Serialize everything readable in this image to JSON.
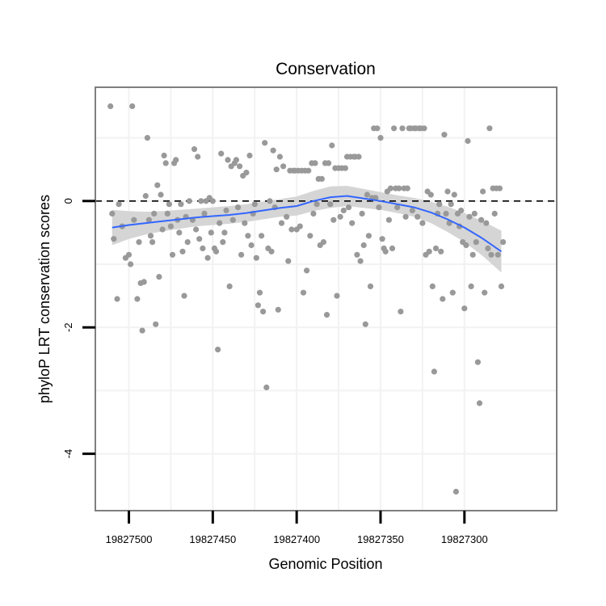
{
  "chart_data": {
    "type": "scatter",
    "title": "Conservation",
    "xlabel": "Genomic Position",
    "ylabel": "phyloP LRT conservation scores",
    "x_reversed": true,
    "xlim": [
      19827520,
      19827245
    ],
    "ylim": [
      -4.9,
      1.8
    ],
    "x_ticks": [
      19827500,
      19827450,
      19827400,
      19827350,
      19827300
    ],
    "x_tick_labels": [
      "19827500",
      "19827450",
      "19827400",
      "19827350",
      "19827300"
    ],
    "y_ticks": [
      0,
      -2,
      -4
    ],
    "y_tick_labels": [
      "0",
      "-2",
      "-4"
    ],
    "reference_line": {
      "y": 0,
      "style": "dashed"
    },
    "colors": {
      "points": "#999999",
      "smooth_line": "#3366ff",
      "ribbon": "#d5d5d5",
      "frame": "#7f7f7f",
      "grid": "#f2f2f2"
    },
    "points": [
      {
        "x": 19827511,
        "y": 1.5
      },
      {
        "x": 19827498,
        "y": 1.5
      },
      {
        "x": 19827510,
        "y": -0.2
      },
      {
        "x": 19827506,
        "y": -0.05
      },
      {
        "x": 19827509,
        "y": -0.6
      },
      {
        "x": 19827507,
        "y": -1.55
      },
      {
        "x": 19827504,
        "y": -0.4
      },
      {
        "x": 19827502,
        "y": -0.9
      },
      {
        "x": 19827500,
        "y": -0.85
      },
      {
        "x": 19827499,
        "y": -1.0
      },
      {
        "x": 19827497,
        "y": -0.3
      },
      {
        "x": 19827495,
        "y": -1.55
      },
      {
        "x": 19827494,
        "y": -0.65
      },
      {
        "x": 19827493,
        "y": -1.3
      },
      {
        "x": 19827492,
        "y": -2.05
      },
      {
        "x": 19827491,
        "y": -1.28
      },
      {
        "x": 19827490,
        "y": 0.08
      },
      {
        "x": 19827489,
        "y": 1.0
      },
      {
        "x": 19827488,
        "y": -0.3
      },
      {
        "x": 19827487,
        "y": -0.55
      },
      {
        "x": 19827486,
        "y": -0.65
      },
      {
        "x": 19827485,
        "y": -0.2
      },
      {
        "x": 19827484,
        "y": -1.95
      },
      {
        "x": 19827483,
        "y": 0.25
      },
      {
        "x": 19827482,
        "y": -1.2
      },
      {
        "x": 19827481,
        "y": 0.1
      },
      {
        "x": 19827480,
        "y": -0.45
      },
      {
        "x": 19827479,
        "y": 0.72
      },
      {
        "x": 19827478,
        "y": 0.6
      },
      {
        "x": 19827477,
        "y": -0.2
      },
      {
        "x": 19827476,
        "y": -0.05
      },
      {
        "x": 19827475,
        "y": -0.4
      },
      {
        "x": 19827474,
        "y": -0.85
      },
      {
        "x": 19827473,
        "y": 0.6
      },
      {
        "x": 19827472,
        "y": 0.65
      },
      {
        "x": 19827471,
        "y": -0.3
      },
      {
        "x": 19827470,
        "y": -0.5
      },
      {
        "x": 19827469,
        "y": -0.05
      },
      {
        "x": 19827468,
        "y": -0.8
      },
      {
        "x": 19827467,
        "y": -1.5
      },
      {
        "x": 19827466,
        "y": -0.25
      },
      {
        "x": 19827465,
        "y": -0.65
      },
      {
        "x": 19827464,
        "y": 0.0
      },
      {
        "x": 19827462,
        "y": -0.3
      },
      {
        "x": 19827461,
        "y": 0.82
      },
      {
        "x": 19827460,
        "y": -0.45
      },
      {
        "x": 19827459,
        "y": 0.7
      },
      {
        "x": 19827458,
        "y": -0.6
      },
      {
        "x": 19827457,
        "y": 0.0
      },
      {
        "x": 19827456,
        "y": -0.75
      },
      {
        "x": 19827455,
        "y": -0.2
      },
      {
        "x": 19827454,
        "y": 0.0
      },
      {
        "x": 19827453,
        "y": -0.9
      },
      {
        "x": 19827452,
        "y": 0.05
      },
      {
        "x": 19827451,
        "y": -0.5
      },
      {
        "x": 19827450,
        "y": 0.0
      },
      {
        "x": 19827449,
        "y": -0.75
      },
      {
        "x": 19827448,
        "y": -0.8
      },
      {
        "x": 19827447,
        "y": -2.35
      },
      {
        "x": 19827446,
        "y": -0.35
      },
      {
        "x": 19827445,
        "y": 0.75
      },
      {
        "x": 19827444,
        "y": -0.65
      },
      {
        "x": 19827443,
        "y": -0.5
      },
      {
        "x": 19827442,
        "y": -0.15
      },
      {
        "x": 19827441,
        "y": 0.65
      },
      {
        "x": 19827440,
        "y": -1.35
      },
      {
        "x": 19827439,
        "y": 0.55
      },
      {
        "x": 19827438,
        "y": -0.3
      },
      {
        "x": 19827437,
        "y": 0.6
      },
      {
        "x": 19827436,
        "y": 0.65
      },
      {
        "x": 19827435,
        "y": -0.1
      },
      {
        "x": 19827434,
        "y": 0.55
      },
      {
        "x": 19827433,
        "y": -0.85
      },
      {
        "x": 19827432,
        "y": 0.4
      },
      {
        "x": 19827431,
        "y": -0.35
      },
      {
        "x": 19827430,
        "y": 0.45
      },
      {
        "x": 19827429,
        "y": -0.55
      },
      {
        "x": 19827428,
        "y": 0.72
      },
      {
        "x": 19827427,
        "y": -0.7
      },
      {
        "x": 19827426,
        "y": -0.2
      },
      {
        "x": 19827425,
        "y": -0.05
      },
      {
        "x": 19827424,
        "y": -0.9
      },
      {
        "x": 19827423,
        "y": -1.65
      },
      {
        "x": 19827422,
        "y": -1.45
      },
      {
        "x": 19827421,
        "y": -0.55
      },
      {
        "x": 19827420,
        "y": -1.75
      },
      {
        "x": 19827419,
        "y": 0.92
      },
      {
        "x": 19827418,
        "y": -2.95
      },
      {
        "x": 19827417,
        "y": -0.75
      },
      {
        "x": 19827416,
        "y": 0.0
      },
      {
        "x": 19827415,
        "y": -0.8
      },
      {
        "x": 19827414,
        "y": 0.8
      },
      {
        "x": 19827413,
        "y": -0.1
      },
      {
        "x": 19827412,
        "y": 0.5
      },
      {
        "x": 19827411,
        "y": -1.72
      },
      {
        "x": 19827410,
        "y": 0.7
      },
      {
        "x": 19827409,
        "y": -0.35
      },
      {
        "x": 19827408,
        "y": 0.55
      },
      {
        "x": 19827406,
        "y": -0.25
      },
      {
        "x": 19827405,
        "y": -0.95
      },
      {
        "x": 19827404,
        "y": 0.48
      },
      {
        "x": 19827403,
        "y": -0.45
      },
      {
        "x": 19827402,
        "y": 0.48
      },
      {
        "x": 19827401,
        "y": 0.48
      },
      {
        "x": 19827400,
        "y": -0.45
      },
      {
        "x": 19827399,
        "y": 0.48
      },
      {
        "x": 19827398,
        "y": -0.4
      },
      {
        "x": 19827397,
        "y": 0.48
      },
      {
        "x": 19827396,
        "y": -1.45
      },
      {
        "x": 19827395,
        "y": 0.48
      },
      {
        "x": 19827394,
        "y": -1.1
      },
      {
        "x": 19827393,
        "y": 0.48
      },
      {
        "x": 19827392,
        "y": -0.55
      },
      {
        "x": 19827391,
        "y": 0.6
      },
      {
        "x": 19827390,
        "y": -0.2
      },
      {
        "x": 19827389,
        "y": 0.6
      },
      {
        "x": 19827388,
        "y": -0.05
      },
      {
        "x": 19827387,
        "y": 0.35
      },
      {
        "x": 19827386,
        "y": -0.7
      },
      {
        "x": 19827385,
        "y": 0.35
      },
      {
        "x": 19827384,
        "y": -0.65
      },
      {
        "x": 19827383,
        "y": 0.6
      },
      {
        "x": 19827382,
        "y": -1.8
      },
      {
        "x": 19827381,
        "y": 0.6
      },
      {
        "x": 19827380,
        "y": -0.05
      },
      {
        "x": 19827379,
        "y": 0.88
      },
      {
        "x": 19827378,
        "y": -0.3
      },
      {
        "x": 19827377,
        "y": 0.52
      },
      {
        "x": 19827376,
        "y": -1.5
      },
      {
        "x": 19827375,
        "y": 0.52
      },
      {
        "x": 19827374,
        "y": -0.25
      },
      {
        "x": 19827373,
        "y": 0.52
      },
      {
        "x": 19827372,
        "y": -0.15
      },
      {
        "x": 19827371,
        "y": 0.52
      },
      {
        "x": 19827370,
        "y": 0.7
      },
      {
        "x": 19827369,
        "y": -0.1
      },
      {
        "x": 19827368,
        "y": 0.7
      },
      {
        "x": 19827367,
        "y": -0.35
      },
      {
        "x": 19827366,
        "y": 0.7
      },
      {
        "x": 19827365,
        "y": 0.7
      },
      {
        "x": 19827364,
        "y": -0.85
      },
      {
        "x": 19827363,
        "y": 0.7
      },
      {
        "x": 19827362,
        "y": -0.95
      },
      {
        "x": 19827361,
        "y": -0.2
      },
      {
        "x": 19827360,
        "y": -0.7
      },
      {
        "x": 19827359,
        "y": -1.95
      },
      {
        "x": 19827358,
        "y": 0.1
      },
      {
        "x": 19827357,
        "y": -0.55
      },
      {
        "x": 19827356,
        "y": -1.35
      },
      {
        "x": 19827355,
        "y": 0.05
      },
      {
        "x": 19827354,
        "y": 1.15
      },
      {
        "x": 19827353,
        "y": 0.05
      },
      {
        "x": 19827352,
        "y": 1.15
      },
      {
        "x": 19827351,
        "y": -0.1
      },
      {
        "x": 19827350,
        "y": 1.0
      },
      {
        "x": 19827349,
        "y": -0.6
      },
      {
        "x": 19827348,
        "y": -0.75
      },
      {
        "x": 19827347,
        "y": -0.8
      },
      {
        "x": 19827346,
        "y": 0.15
      },
      {
        "x": 19827345,
        "y": -0.3
      },
      {
        "x": 19827344,
        "y": 0.2
      },
      {
        "x": 19827343,
        "y": -0.75
      },
      {
        "x": 19827342,
        "y": 1.15
      },
      {
        "x": 19827341,
        "y": 0.2
      },
      {
        "x": 19827340,
        "y": -0.1
      },
      {
        "x": 19827339,
        "y": 0.2
      },
      {
        "x": 19827338,
        "y": -1.75
      },
      {
        "x": 19827337,
        "y": 1.15
      },
      {
        "x": 19827336,
        "y": 0.2
      },
      {
        "x": 19827335,
        "y": -0.25
      },
      {
        "x": 19827334,
        "y": 0.2
      },
      {
        "x": 19827333,
        "y": 1.15
      },
      {
        "x": 19827332,
        "y": 1.15
      },
      {
        "x": 19827331,
        "y": -0.15
      },
      {
        "x": 19827330,
        "y": 1.15
      },
      {
        "x": 19827329,
        "y": 1.15
      },
      {
        "x": 19827328,
        "y": -0.25
      },
      {
        "x": 19827327,
        "y": 1.15
      },
      {
        "x": 19827326,
        "y": 1.15
      },
      {
        "x": 19827325,
        "y": -0.35
      },
      {
        "x": 19827324,
        "y": 1.15
      },
      {
        "x": 19827323,
        "y": -0.85
      },
      {
        "x": 19827322,
        "y": 0.15
      },
      {
        "x": 19827321,
        "y": -0.8
      },
      {
        "x": 19827320,
        "y": 0.1
      },
      {
        "x": 19827319,
        "y": -1.35
      },
      {
        "x": 19827318,
        "y": -2.7
      },
      {
        "x": 19827317,
        "y": -0.75
      },
      {
        "x": 19827316,
        "y": -0.2
      },
      {
        "x": 19827315,
        "y": -0.05
      },
      {
        "x": 19827314,
        "y": -0.8
      },
      {
        "x": 19827313,
        "y": -1.55
      },
      {
        "x": 19827312,
        "y": 1.05
      },
      {
        "x": 19827311,
        "y": -0.2
      },
      {
        "x": 19827310,
        "y": 0.15
      },
      {
        "x": 19827309,
        "y": -0.35
      },
      {
        "x": 19827308,
        "y": -0.05
      },
      {
        "x": 19827307,
        "y": -1.45
      },
      {
        "x": 19827306,
        "y": 0.1
      },
      {
        "x": 19827305,
        "y": -4.6
      },
      {
        "x": 19827304,
        "y": -0.2
      },
      {
        "x": 19827303,
        "y": -0.4
      },
      {
        "x": 19827302,
        "y": -0.15
      },
      {
        "x": 19827301,
        "y": -0.65
      },
      {
        "x": 19827300,
        "y": -1.7
      },
      {
        "x": 19827299,
        "y": -0.7
      },
      {
        "x": 19827298,
        "y": 0.95
      },
      {
        "x": 19827297,
        "y": -0.25
      },
      {
        "x": 19827296,
        "y": -1.35
      },
      {
        "x": 19827295,
        "y": -0.85
      },
      {
        "x": 19827294,
        "y": -0.2
      },
      {
        "x": 19827293,
        "y": -0.65
      },
      {
        "x": 19827292,
        "y": -2.55
      },
      {
        "x": 19827291,
        "y": -3.2
      },
      {
        "x": 19827290,
        "y": -0.3
      },
      {
        "x": 19827289,
        "y": 0.15
      },
      {
        "x": 19827288,
        "y": -1.45
      },
      {
        "x": 19827287,
        "y": -0.35
      },
      {
        "x": 19827286,
        "y": -0.75
      },
      {
        "x": 19827285,
        "y": 1.15
      },
      {
        "x": 19827284,
        "y": -0.85
      },
      {
        "x": 19827283,
        "y": 0.2
      },
      {
        "x": 19827282,
        "y": -0.2
      },
      {
        "x": 19827281,
        "y": 0.2
      },
      {
        "x": 19827280,
        "y": -0.85
      },
      {
        "x": 19827279,
        "y": 0.2
      },
      {
        "x": 19827278,
        "y": -1.35
      },
      {
        "x": 19827277,
        "y": -0.65
      }
    ],
    "smooth": [
      {
        "x": 19827510,
        "y": -0.42
      },
      {
        "x": 19827500,
        "y": -0.38
      },
      {
        "x": 19827490,
        "y": -0.35
      },
      {
        "x": 19827480,
        "y": -0.32
      },
      {
        "x": 19827470,
        "y": -0.29
      },
      {
        "x": 19827460,
        "y": -0.26
      },
      {
        "x": 19827450,
        "y": -0.24
      },
      {
        "x": 19827440,
        "y": -0.22
      },
      {
        "x": 19827430,
        "y": -0.19
      },
      {
        "x": 19827420,
        "y": -0.15
      },
      {
        "x": 19827410,
        "y": -0.11
      },
      {
        "x": 19827400,
        "y": -0.08
      },
      {
        "x": 19827390,
        "y": 0.0
      },
      {
        "x": 19827380,
        "y": 0.06
      },
      {
        "x": 19827370,
        "y": 0.08
      },
      {
        "x": 19827360,
        "y": 0.04
      },
      {
        "x": 19827350,
        "y": 0.0
      },
      {
        "x": 19827340,
        "y": -0.05
      },
      {
        "x": 19827330,
        "y": -0.1
      },
      {
        "x": 19827320,
        "y": -0.18
      },
      {
        "x": 19827310,
        "y": -0.29
      },
      {
        "x": 19827300,
        "y": -0.42
      },
      {
        "x": 19827290,
        "y": -0.58
      },
      {
        "x": 19827278,
        "y": -0.8
      }
    ],
    "ribbon_halfwidth": [
      0.28,
      0.22,
      0.18,
      0.16,
      0.15,
      0.14,
      0.14,
      0.14,
      0.14,
      0.14,
      0.14,
      0.15,
      0.16,
      0.17,
      0.16,
      0.15,
      0.14,
      0.14,
      0.15,
      0.17,
      0.2,
      0.23,
      0.27,
      0.33
    ]
  }
}
